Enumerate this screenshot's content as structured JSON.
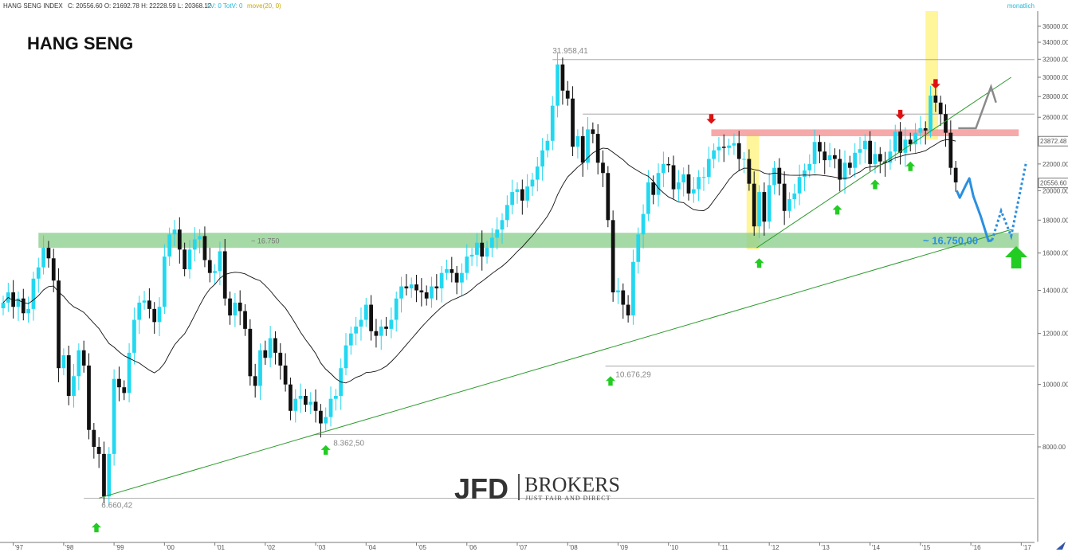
{
  "header": {
    "instrument": "HANG SENG INDEX",
    "ohlc": "C: 20556.60 O: 21692.78 H: 22228.59 L: 20368.12",
    "volume": "LV: 0 TotV: 0",
    "ma": "move(20, 0)",
    "timeframe": "monatlich"
  },
  "colors": {
    "up_candle": "#22d8f0",
    "down_candle": "#111111",
    "ma_line": "#111111",
    "trendline": "#2a9a2a",
    "support_zone": "#8fcf8f",
    "resistance_zone": "#f59a9a",
    "highlight": "#fff27a",
    "forecast": "#2b8fe0",
    "alt_forecast": "#8a8a8a",
    "up_arrow": "#22cc22",
    "down_arrow": "#e01010"
  },
  "chart_data": {
    "type": "candlestick",
    "title": "HANG SENG",
    "y_scale": "log",
    "ylim": [
      5700,
      38000
    ],
    "y_ticks": [
      8000,
      10000,
      12000,
      14000,
      16000,
      18000,
      20000,
      22000,
      24000,
      26000,
      28000,
      30000,
      32000,
      34000,
      36000
    ],
    "y_tick_labels": [
      "8000.00",
      "10000.00",
      "12000.00",
      "14000.00",
      "16000.00",
      "18000.00",
      "20000.00",
      "22000.00",
      "24000.00",
      "26000.00",
      "28000.00",
      "30000.00",
      "32000.00",
      "34000.00",
      "36000.00"
    ],
    "x_ticks": [
      "'97",
      "'98",
      "'99",
      "'00",
      "'01",
      "'02",
      "'03",
      "'04",
      "'05",
      "'06",
      "'07",
      "'08",
      "'09",
      "'10",
      "'11",
      "'12",
      "'13",
      "'14",
      "'15",
      "'16",
      "'17"
    ],
    "x_tick_years": [
      1997,
      1998,
      1999,
      2000,
      2001,
      2002,
      2003,
      2004,
      2005,
      2006,
      2007,
      2008,
      2009,
      2010,
      2011,
      2012,
      2013,
      2014,
      2015,
      2016,
      2017
    ],
    "price_labels": {
      "last_close": "20556.60",
      "ma_value": "23872.48"
    },
    "monthly_close": [
      [
        1996.8,
        13400
      ],
      [
        1996.9,
        13900
      ],
      [
        1997.0,
        13200
      ],
      [
        1997.1,
        13600
      ],
      [
        1997.2,
        12900
      ],
      [
        1997.3,
        13100
      ],
      [
        1997.4,
        14600
      ],
      [
        1997.5,
        15200
      ],
      [
        1997.6,
        16300
      ],
      [
        1997.7,
        15700
      ],
      [
        1997.8,
        14500
      ],
      [
        1997.9,
        10600
      ],
      [
        1998.0,
        11100
      ],
      [
        1998.1,
        9600
      ],
      [
        1998.2,
        10300
      ],
      [
        1998.3,
        11300
      ],
      [
        1998.4,
        10700
      ],
      [
        1998.5,
        8500
      ],
      [
        1998.6,
        8000
      ],
      [
        1998.7,
        7800
      ],
      [
        1998.8,
        6700
      ],
      [
        1998.9,
        7800
      ],
      [
        1999.0,
        10200
      ],
      [
        1999.1,
        9900
      ],
      [
        1999.2,
        9700
      ],
      [
        1999.3,
        11200
      ],
      [
        1999.4,
        12600
      ],
      [
        1999.5,
        13400
      ],
      [
        1999.6,
        13500
      ],
      [
        1999.7,
        13100
      ],
      [
        1999.8,
        12500
      ],
      [
        1999.9,
        13200
      ],
      [
        2000.0,
        15800
      ],
      [
        2000.1,
        17100
      ],
      [
        2000.2,
        17400
      ],
      [
        2000.3,
        16200
      ],
      [
        2000.4,
        15100
      ],
      [
        2000.5,
        16200
      ],
      [
        2000.6,
        16800
      ],
      [
        2000.7,
        17000
      ],
      [
        2000.8,
        15600
      ],
      [
        2000.9,
        14900
      ],
      [
        2001.0,
        15000
      ],
      [
        2001.1,
        16100
      ],
      [
        2001.2,
        13600
      ],
      [
        2001.3,
        12800
      ],
      [
        2001.4,
        13400
      ],
      [
        2001.5,
        13000
      ],
      [
        2001.6,
        12200
      ],
      [
        2001.7,
        10300
      ],
      [
        2001.8,
        9950
      ],
      [
        2001.9,
        11300
      ],
      [
        2002.0,
        11000
      ],
      [
        2002.1,
        11800
      ],
      [
        2002.2,
        11200
      ],
      [
        2002.3,
        10700
      ],
      [
        2002.4,
        10000
      ],
      [
        2002.5,
        9100
      ],
      [
        2002.6,
        9500
      ],
      [
        2002.7,
        9600
      ],
      [
        2002.8,
        9300
      ],
      [
        2002.9,
        9400
      ],
      [
        2003.0,
        9100
      ],
      [
        2003.1,
        8700
      ],
      [
        2003.2,
        8900
      ],
      [
        2003.3,
        9500
      ],
      [
        2003.4,
        9600
      ],
      [
        2003.5,
        10600
      ],
      [
        2003.6,
        11500
      ],
      [
        2003.7,
        12000
      ],
      [
        2003.8,
        12300
      ],
      [
        2003.9,
        12600
      ],
      [
        2004.0,
        13300
      ],
      [
        2004.1,
        12100
      ],
      [
        2004.2,
        11900
      ],
      [
        2004.3,
        12300
      ],
      [
        2004.4,
        12200
      ],
      [
        2004.5,
        12600
      ],
      [
        2004.6,
        13600
      ],
      [
        2004.7,
        14200
      ],
      [
        2004.8,
        14100
      ],
      [
        2004.9,
        14300
      ],
      [
        2005.0,
        14000
      ],
      [
        2005.1,
        13900
      ],
      [
        2005.2,
        13600
      ],
      [
        2005.3,
        14200
      ],
      [
        2005.4,
        14100
      ],
      [
        2005.5,
        14900
      ],
      [
        2005.6,
        15100
      ],
      [
        2005.7,
        14900
      ],
      [
        2005.8,
        14400
      ],
      [
        2005.9,
        14900
      ],
      [
        2006.0,
        15800
      ],
      [
        2006.1,
        15900
      ],
      [
        2006.2,
        16600
      ],
      [
        2006.3,
        15800
      ],
      [
        2006.4,
        16300
      ],
      [
        2006.5,
        16900
      ],
      [
        2006.6,
        17400
      ],
      [
        2006.7,
        18000
      ],
      [
        2006.8,
        19000
      ],
      [
        2006.9,
        19900
      ],
      [
        2007.0,
        20100
      ],
      [
        2007.1,
        19300
      ],
      [
        2007.2,
        20300
      ],
      [
        2007.3,
        20800
      ],
      [
        2007.4,
        21800
      ],
      [
        2007.5,
        23100
      ],
      [
        2007.6,
        23900
      ],
      [
        2007.7,
        27100
      ],
      [
        2007.8,
        31400
      ],
      [
        2007.9,
        28600
      ],
      [
        2008.0,
        27800
      ],
      [
        2008.1,
        23400
      ],
      [
        2008.2,
        24300
      ],
      [
        2008.3,
        22100
      ],
      [
        2008.4,
        24900
      ],
      [
        2008.5,
        24500
      ],
      [
        2008.6,
        22100
      ],
      [
        2008.7,
        21300
      ],
      [
        2008.8,
        18000
      ],
      [
        2008.9,
        13900
      ],
      [
        2009.0,
        14000
      ],
      [
        2009.1,
        13300
      ],
      [
        2009.2,
        12800
      ],
      [
        2009.3,
        15500
      ],
      [
        2009.4,
        17100
      ],
      [
        2009.5,
        18400
      ],
      [
        2009.6,
        20600
      ],
      [
        2009.7,
        19700
      ],
      [
        2009.8,
        21300
      ],
      [
        2009.9,
        22000
      ],
      [
        2010.0,
        21900
      ],
      [
        2010.1,
        20100
      ],
      [
        2010.2,
        20600
      ],
      [
        2010.3,
        21200
      ],
      [
        2010.4,
        19800
      ],
      [
        2010.5,
        20100
      ],
      [
        2010.6,
        21000
      ],
      [
        2010.7,
        21000
      ],
      [
        2010.8,
        22400
      ],
      [
        2010.9,
        23100
      ],
      [
        2011.0,
        23400
      ],
      [
        2011.1,
        23300
      ],
      [
        2011.2,
        23500
      ],
      [
        2011.3,
        23700
      ],
      [
        2011.4,
        22400
      ],
      [
        2011.5,
        22400
      ],
      [
        2011.6,
        20500
      ],
      [
        2011.7,
        17600
      ],
      [
        2011.8,
        19900
      ],
      [
        2011.9,
        17900
      ],
      [
        2012.0,
        20400
      ],
      [
        2012.1,
        21700
      ],
      [
        2012.2,
        20500
      ],
      [
        2012.3,
        18600
      ],
      [
        2012.4,
        19400
      ],
      [
        2012.5,
        19800
      ],
      [
        2012.6,
        21000
      ],
      [
        2012.7,
        21500
      ],
      [
        2012.8,
        22000
      ],
      [
        2012.9,
        23800
      ],
      [
        2013.0,
        23000
      ],
      [
        2013.1,
        22300
      ],
      [
        2013.2,
        22700
      ],
      [
        2013.3,
        22400
      ],
      [
        2013.4,
        20800
      ],
      [
        2013.5,
        22100
      ],
      [
        2013.6,
        21700
      ],
      [
        2013.7,
        22900
      ],
      [
        2013.8,
        23200
      ],
      [
        2013.9,
        23900
      ],
      [
        2014.0,
        22000
      ],
      [
        2014.1,
        22800
      ],
      [
        2014.2,
        22200
      ],
      [
        2014.3,
        22100
      ],
      [
        2014.4,
        23000
      ],
      [
        2014.5,
        24700
      ],
      [
        2014.6,
        22900
      ],
      [
        2014.7,
        24000
      ],
      [
        2014.8,
        23600
      ],
      [
        2014.9,
        24600
      ],
      [
        2015.0,
        25000
      ],
      [
        2015.1,
        24800
      ],
      [
        2015.2,
        28100
      ],
      [
        2015.3,
        27400
      ],
      [
        2015.4,
        26300
      ],
      [
        2015.5,
        24600
      ],
      [
        2015.6,
        21700
      ],
      [
        2015.7,
        20600
      ]
    ],
    "annotations": [
      {
        "text": "31.958,41",
        "year": 2007.85,
        "value": 31958
      },
      {
        "text": "10.676,29",
        "year": 2008.85,
        "value": 10676
      },
      {
        "text": "8.362,50",
        "year": 2003.2,
        "value": 8362
      },
      {
        "text": "6.660,42",
        "year": 1998.65,
        "value": 6660
      },
      {
        "text": "~ 16.750",
        "zone": "support",
        "value": 16750
      },
      {
        "text": "~ 16.750,00",
        "value": 16750
      }
    ],
    "support_zone": [
      16300,
      17200
    ],
    "resistance_zone": [
      24300,
      24900
    ],
    "horizontal_levels": [
      31958,
      26300,
      10676,
      8362,
      6660
    ],
    "trendlines": [
      {
        "name": "long-term",
        "from": [
          1998.7,
          6660
        ],
        "to": [
          2016.8,
          17400
        ]
      },
      {
        "name": "medium-term",
        "from": [
          2011.75,
          16300
        ],
        "to": [
          2016.8,
          30000
        ]
      }
    ],
    "arrows_up": [
      1998.65,
      2003.2,
      2008.85,
      2011.8,
      2013.35,
      2014.1,
      2014.8
    ],
    "arrows_down": [
      2010.85,
      2014.6,
      2015.3
    ],
    "highlights": [
      [
        2011.55,
        2011.8
      ],
      [
        2015.1,
        2015.35
      ]
    ]
  },
  "brand": {
    "name_left": "JFD",
    "name_right": "BROKERS",
    "tagline": "JUST FAIR AND DIRECT"
  }
}
